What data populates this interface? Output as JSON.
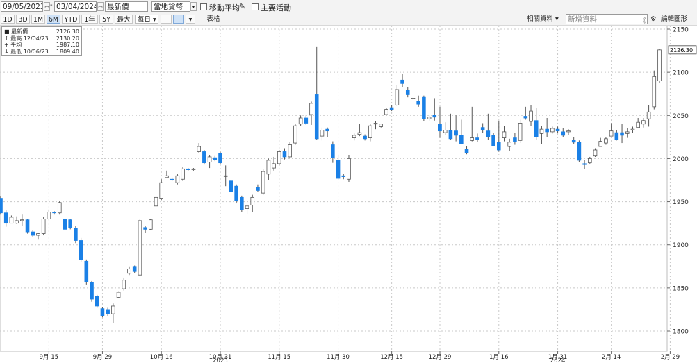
{
  "toolbar": {
    "start_date": "09/05/2023",
    "end_date": "03/04/2024",
    "price_field": "最新價",
    "currency": "當地貨幣",
    "moving_avg_label": "移動平均",
    "key_events_label": "主要活動",
    "periods": [
      "1D",
      "3D",
      "1M",
      "6M",
      "YTD",
      "1年",
      "5Y",
      "最大"
    ],
    "active_period": "6M",
    "interval": "每日",
    "table_label": "表格",
    "related_data": "相關資料",
    "new_data_placeholder": "新增資料",
    "edit_chart": "編輯圖形"
  },
  "legend": {
    "last_label": "最新價",
    "last_value": "2126.30",
    "high_label": "最高",
    "high_date": "12/04/23",
    "high_value": "2130.20",
    "avg_label": "平均",
    "avg_value": "1987.10",
    "low_label": "最低",
    "low_date": "10/06/23",
    "low_value": "1809.40"
  },
  "colors": {
    "down": "#1a80e6",
    "up": "#ffffff",
    "wick": "#555555",
    "grid": "#c8c8c8"
  },
  "chart_data": {
    "type": "candlestick",
    "ylim": [
      1780,
      2160
    ],
    "yticks": [
      1800,
      1850,
      1900,
      1950,
      2000,
      2050,
      2100,
      2150
    ],
    "last_price_label": "2126.30",
    "x_tick_labels": [
      "9月 15",
      "9月 29",
      "10月 16",
      "10月 31",
      "11月 15",
      "11月 30",
      "12月 15",
      "12月 29",
      "1月 16",
      "1月 31",
      "2月 14",
      "2月 29"
    ],
    "x_tick_index": [
      9,
      19,
      30,
      41,
      52,
      63,
      73,
      82,
      93,
      104,
      114,
      125
    ],
    "year_labels": [
      {
        "label": "2023",
        "index": 41
      },
      {
        "label": "2024",
        "index": 104
      }
    ],
    "ohlc": [
      [
        1954,
        1956,
        1935,
        1937
      ],
      [
        1937,
        1940,
        1921,
        1925
      ],
      [
        1925,
        1934,
        1925,
        1932
      ],
      [
        1925,
        1933,
        1924,
        1928
      ],
      [
        1928,
        1935,
        1922,
        1929
      ],
      [
        1929,
        1930,
        1913,
        1915
      ],
      [
        1915,
        1917,
        1909,
        1911
      ],
      [
        1911,
        1914,
        1906,
        1913
      ],
      [
        1913,
        1932,
        1911,
        1930
      ],
      [
        1930,
        1941,
        1929,
        1938
      ],
      [
        1938,
        1939,
        1935,
        1937
      ],
      [
        1937,
        1951,
        1935,
        1949
      ],
      [
        1930,
        1932,
        1915,
        1918
      ],
      [
        1929,
        1930,
        1918,
        1920
      ],
      [
        1919,
        1922,
        1902,
        1905
      ],
      [
        1905,
        1908,
        1880,
        1883
      ],
      [
        1881,
        1883,
        1854,
        1857
      ],
      [
        1856,
        1858,
        1834,
        1837
      ],
      [
        1840,
        1842,
        1827,
        1829
      ],
      [
        1826,
        1828,
        1816,
        1818
      ],
      [
        1825,
        1827,
        1817,
        1820
      ],
      [
        1820,
        1832,
        1809,
        1829
      ],
      [
        1839,
        1846,
        1838,
        1845
      ],
      [
        1849,
        1862,
        1847,
        1859
      ],
      [
        1867,
        1875,
        1865,
        1872
      ],
      [
        1875,
        1876,
        1867,
        1869
      ],
      [
        1865,
        1930,
        1864,
        1928
      ],
      [
        1920,
        1922,
        1914,
        1918
      ],
      [
        1918,
        1930,
        1917,
        1929
      ],
      [
        1945,
        1958,
        1943,
        1955
      ],
      [
        1954,
        1976,
        1952,
        1972
      ],
      [
        1978,
        1986,
        1978,
        1980
      ],
      [
        1976,
        1978,
        1974,
        1975
      ],
      [
        1972,
        1982,
        1970,
        1980
      ],
      [
        1976,
        1990,
        1974,
        1988
      ],
      [
        1988,
        1989,
        1986,
        1987
      ],
      [
        1987,
        1989,
        1986,
        1988
      ],
      [
        2008,
        2018,
        2006,
        2014
      ],
      [
        2008,
        2010,
        1993,
        1995
      ],
      [
        1996,
        2004,
        1989,
        2002
      ],
      [
        2001,
        2003,
        1997,
        1999
      ],
      [
        2006,
        2008,
        1993,
        1995
      ],
      [
        1980,
        1992,
        1968,
        1980
      ],
      [
        1974,
        1975,
        1961,
        1962
      ],
      [
        1968,
        1970,
        1948,
        1951
      ],
      [
        1955,
        1957,
        1938,
        1941
      ],
      [
        1942,
        1946,
        1936,
        1945
      ],
      [
        1946,
        1958,
        1938,
        1955
      ],
      [
        1967,
        1970,
        1961,
        1963
      ],
      [
        1960,
        1988,
        1958,
        1985
      ],
      [
        1982,
        2000,
        1975,
        1998
      ],
      [
        1989,
        2002,
        1986,
        1994
      ],
      [
        1994,
        2010,
        1992,
        2008
      ],
      [
        2008,
        2012,
        1999,
        2002
      ],
      [
        2002,
        2019,
        2001,
        2016
      ],
      [
        2018,
        2040,
        2016,
        2038
      ],
      [
        2040,
        2050,
        2038,
        2047
      ],
      [
        2047,
        2050,
        2039,
        2041
      ],
      [
        2051,
        2066,
        2039,
        2064
      ],
      [
        2074,
        2130,
        2022,
        2023
      ],
      [
        2026,
        2036,
        2021,
        2033
      ],
      [
        2034,
        2036,
        2025,
        2032
      ],
      [
        2016,
        2020,
        1995,
        2001
      ],
      [
        1998,
        2004,
        1975,
        1977
      ],
      [
        1980,
        1982,
        1976,
        1979
      ],
      [
        1976,
        2004,
        1973,
        2000
      ],
      [
        2024,
        2029,
        2021,
        2027
      ],
      [
        2028,
        2040,
        2026,
        2030
      ],
      [
        2026,
        2028,
        2021,
        2023
      ],
      [
        2024,
        2040,
        2020,
        2038
      ],
      [
        2040,
        2043,
        2034,
        2041
      ],
      [
        2037,
        2040,
        2036,
        2040
      ],
      [
        2051,
        2059,
        2050,
        2057
      ],
      [
        2059,
        2062,
        2055,
        2057
      ],
      [
        2062,
        2085,
        2061,
        2080
      ],
      [
        2091,
        2098,
        2083,
        2087
      ],
      [
        2079,
        2083,
        2071,
        2074
      ],
      [
        2070,
        2071,
        2068,
        2070
      ],
      [
        2066,
        2073,
        2060,
        2063
      ],
      [
        2071,
        2073,
        2043,
        2046
      ],
      [
        2046,
        2050,
        2044,
        2048
      ],
      [
        2050,
        2070,
        2044,
        2048
      ],
      [
        2040,
        2060,
        2024,
        2032
      ],
      [
        2030,
        2042,
        2027,
        2033
      ],
      [
        2033,
        2052,
        2022,
        2023
      ],
      [
        2032,
        2050,
        2020,
        2027
      ],
      [
        2027,
        2045,
        2017,
        2017
      ],
      [
        2011,
        2014,
        2005,
        2007
      ],
      [
        2021,
        2060,
        2020,
        2024
      ],
      [
        2024,
        2029,
        2019,
        2022
      ],
      [
        2036,
        2041,
        2030,
        2033
      ],
      [
        2032,
        2052,
        2022,
        2025
      ],
      [
        2027,
        2030,
        2015,
        2015
      ],
      [
        2019,
        2043,
        2008,
        2010
      ],
      [
        2024,
        2038,
        2020,
        2031
      ],
      [
        2014,
        2023,
        2009,
        2019
      ],
      [
        2024,
        2030,
        2016,
        2020
      ],
      [
        2021,
        2045,
        2018,
        2041
      ],
      [
        2049,
        2060,
        2045,
        2047
      ],
      [
        2043,
        2062,
        2038,
        2055
      ],
      [
        2044,
        2059,
        2022,
        2025
      ],
      [
        2029,
        2038,
        2017,
        2034
      ],
      [
        2034,
        2047,
        2025,
        2031
      ],
      [
        2031,
        2037,
        2029,
        2035
      ],
      [
        2034,
        2037,
        2030,
        2032
      ],
      [
        2031,
        2035,
        2025,
        2027
      ],
      [
        2031,
        2034,
        2027,
        2032
      ],
      [
        2021,
        2025,
        2017,
        2019
      ],
      [
        2019,
        2021,
        1996,
        1998
      ],
      [
        1994,
        1998,
        1988,
        1993
      ],
      [
        1995,
        2002,
        1994,
        2000
      ],
      [
        2003,
        2012,
        2002,
        2010
      ],
      [
        2014,
        2024,
        2014,
        2020
      ],
      [
        2018,
        2025,
        2016,
        2023
      ],
      [
        2026,
        2041,
        2026,
        2032
      ],
      [
        2030,
        2033,
        2021,
        2022
      ],
      [
        2030,
        2040,
        2018,
        2027
      ],
      [
        2029,
        2035,
        2024,
        2031
      ],
      [
        2033,
        2037,
        2030,
        2034
      ],
      [
        2036,
        2047,
        2035,
        2042
      ],
      [
        2040,
        2047,
        2036,
        2044
      ],
      [
        2046,
        2062,
        2037,
        2054
      ],
      [
        2060,
        2102,
        2057,
        2095
      ],
      [
        2090,
        2127,
        2088,
        2126
      ]
    ]
  }
}
